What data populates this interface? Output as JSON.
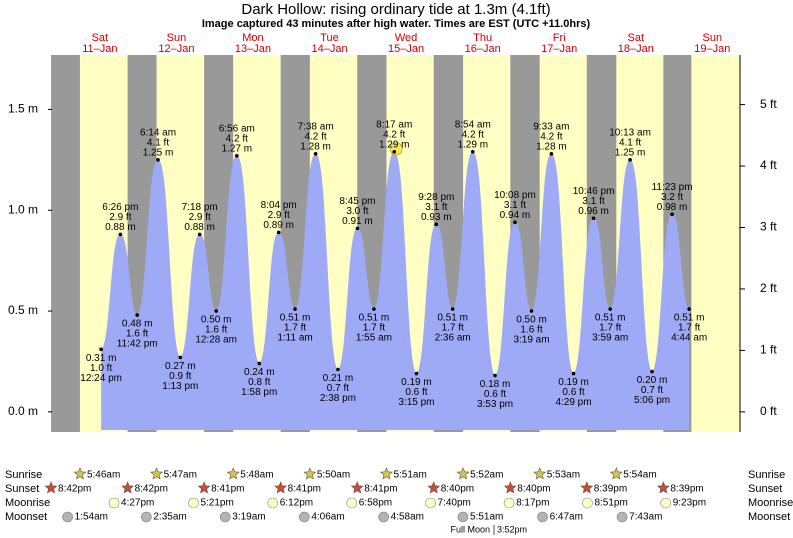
{
  "chart_data": {
    "type": "tide",
    "title": "Dark Hollow: rising  ordinary tide at 1.3m (4.1ft)",
    "subtitle": "Image captured 43 minutes after high water. Times are EST (UTC +11.0hrs)",
    "ylim": [
      -0.1,
      1.77
    ],
    "yticks": [
      {
        "value": 0,
        "label": "0.0 m"
      },
      {
        "value": 0.5,
        "label": "0.5 m"
      },
      {
        "value": 1.0,
        "label": "1.0 m"
      },
      {
        "value": 1.5,
        "label": "1.5 m"
      }
    ],
    "y2lim": [
      -0.328,
      5.807
    ],
    "y2ticks": [
      {
        "value": 0,
        "label": "0 ft"
      },
      {
        "value": 1,
        "label": "1 ft"
      },
      {
        "value": 2,
        "label": "2 ft"
      },
      {
        "value": 3,
        "label": "3 ft"
      },
      {
        "value": 4,
        "label": "4 ft"
      },
      {
        "value": 5,
        "label": "5 ft"
      }
    ],
    "fill_color": "#9faaf6",
    "day_color": "#ffffc4",
    "night_color": "#999999",
    "day_label_color": "#cc0000",
    "days": [
      {
        "weekday": "Sat",
        "date": "11–Jan",
        "tides": [
          {
            "time": "12:24 pm",
            "height": 0.31,
            "height_label": "0.31 m",
            "feet_label": "1.0 ft"
          },
          {
            "time": "6:26 pm",
            "height": 0.88,
            "height_label": "0.88 m",
            "feet_label": "2.9 ft"
          },
          {
            "time": "11:42 pm",
            "height": 0.48,
            "height_label": "0.48 m",
            "feet_label": "1.6 ft"
          }
        ]
      },
      {
        "weekday": "Sun",
        "date": "12–Jan",
        "tides": [
          {
            "time": "6:14 am",
            "height": 1.25,
            "height_label": "1.25 m",
            "feet_label": "4.1 ft"
          },
          {
            "time": "1:13 pm",
            "height": 0.27,
            "height_label": "0.27 m",
            "feet_label": "0.9 ft"
          },
          {
            "time": "7:18 pm",
            "height": 0.88,
            "height_label": "0.88 m",
            "feet_label": "2.9 ft"
          }
        ]
      },
      {
        "weekday": "Mon",
        "date": "13–Jan",
        "tides": [
          {
            "time": "12:28 am",
            "height": 0.5,
            "height_label": "0.50 m",
            "feet_label": "1.6 ft"
          },
          {
            "time": "6:56 am",
            "height": 1.27,
            "height_label": "1.27 m",
            "feet_label": "4.2 ft"
          },
          {
            "time": "1:58 pm",
            "height": 0.24,
            "height_label": "0.24 m",
            "feet_label": "0.8 ft"
          },
          {
            "time": "8:04 pm",
            "height": 0.89,
            "height_label": "0.89 m",
            "feet_label": "2.9 ft"
          }
        ]
      },
      {
        "weekday": "Tue",
        "date": "14–Jan",
        "tides": [
          {
            "time": "1:11 am",
            "height": 0.51,
            "height_label": "0.51 m",
            "feet_label": "1.7 ft"
          },
          {
            "time": "7:38 am",
            "height": 1.28,
            "height_label": "1.28 m",
            "feet_label": "4.2 ft"
          },
          {
            "time": "2:38 pm",
            "height": 0.21,
            "height_label": "0.21 m",
            "feet_label": "0.7 ft"
          },
          {
            "time": "8:45 pm",
            "height": 0.91,
            "height_label": "0.91 m",
            "feet_label": "3.0 ft"
          }
        ]
      },
      {
        "weekday": "Wed",
        "date": "15–Jan",
        "tides": [
          {
            "time": "1:55 am",
            "height": 0.51,
            "height_label": "0.51 m",
            "feet_label": "1.7 ft"
          },
          {
            "time": "8:17 am",
            "height": 1.29,
            "height_label": "1.29 m",
            "feet_label": "4.2 ft"
          },
          {
            "time": "3:15 pm",
            "height": 0.19,
            "height_label": "0.19 m",
            "feet_label": "0.6 ft"
          },
          {
            "time": "9:28 pm",
            "height": 0.93,
            "height_label": "0.93 m",
            "feet_label": "3.1 ft"
          }
        ]
      },
      {
        "weekday": "Thu",
        "date": "16–Jan",
        "tides": [
          {
            "time": "2:36 am",
            "height": 0.51,
            "height_label": "0.51 m",
            "feet_label": "1.7 ft"
          },
          {
            "time": "8:54 am",
            "height": 1.29,
            "height_label": "1.29 m",
            "feet_label": "4.2 ft"
          },
          {
            "time": "3:53 pm",
            "height": 0.18,
            "height_label": "0.18 m",
            "feet_label": "0.6 ft"
          },
          {
            "time": "10:08 pm",
            "height": 0.94,
            "height_label": "0.94 m",
            "feet_label": "3.1 ft"
          }
        ]
      },
      {
        "weekday": "Fri",
        "date": "17–Jan",
        "tides": [
          {
            "time": "3:19 am",
            "height": 0.5,
            "height_label": "0.50 m",
            "feet_label": "1.6 ft"
          },
          {
            "time": "9:33 am",
            "height": 1.28,
            "height_label": "1.28 m",
            "feet_label": "4.2 ft"
          },
          {
            "time": "4:29 pm",
            "height": 0.19,
            "height_label": "0.19 m",
            "feet_label": "0.6 ft"
          },
          {
            "time": "10:46 pm",
            "height": 0.96,
            "height_label": "0.96 m",
            "feet_label": "3.1 ft"
          }
        ]
      },
      {
        "weekday": "Sat",
        "date": "18–Jan",
        "tides": [
          {
            "time": "3:59 am",
            "height": 0.51,
            "height_label": "0.51 m",
            "feet_label": "1.7 ft"
          },
          {
            "time": "10:13 am",
            "height": 1.25,
            "height_label": "1.25 m",
            "feet_label": "4.1 ft"
          },
          {
            "time": "5:06 pm",
            "height": 0.2,
            "height_label": "0.20 m",
            "feet_label": "0.7 ft"
          },
          {
            "time": "11:23 pm",
            "height": 0.98,
            "height_label": "0.98 m",
            "feet_label": "3.2 ft"
          }
        ]
      },
      {
        "weekday": "Sun",
        "date": "19–Jan",
        "tides": [
          {
            "time": "4:44 am",
            "height": 0.51,
            "height_label": "0.51 m",
            "feet_label": "1.7 ft"
          }
        ]
      }
    ],
    "astro": [
      {
        "label": "Sunrise",
        "times": [
          "5:46am",
          "5:47am",
          "5:48am",
          "5:50am",
          "5:51am",
          "5:52am",
          "5:53am",
          "5:54am"
        ]
      },
      {
        "label": "Sunset",
        "times": [
          "8:42pm",
          "8:42pm",
          "8:41pm",
          "8:41pm",
          "8:41pm",
          "8:40pm",
          "8:40pm",
          "8:39pm",
          "8:39pm"
        ]
      },
      {
        "label": "Moonrise",
        "times": [
          "4:27pm",
          "5:21pm",
          "6:12pm",
          "6:58pm",
          "7:40pm",
          "8:17pm",
          "8:51pm",
          "9:23pm"
        ]
      },
      {
        "label": "Moonset",
        "times": [
          "1:54am",
          "2:35am",
          "3:19am",
          "4:06am",
          "4:58am",
          "5:51am",
          "6:47am",
          "7:43am"
        ]
      }
    ],
    "moon_phase": {
      "label": "Full Moon",
      "time": "3:52pm"
    }
  }
}
